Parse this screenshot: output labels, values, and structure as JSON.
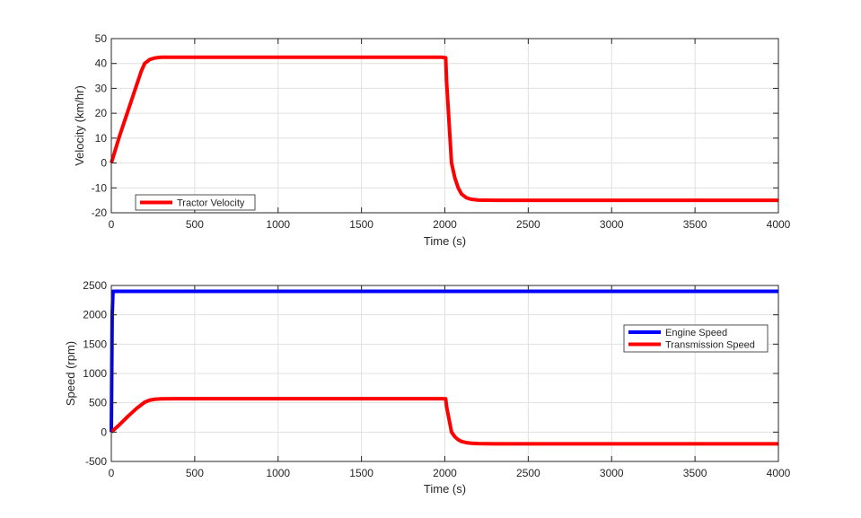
{
  "chart_data": [
    {
      "type": "line",
      "xlabel": "Time (s)",
      "ylabel": "Velocity (km/hr)",
      "xlim": [
        0,
        4000
      ],
      "ylim": [
        -20,
        50
      ],
      "xticks": [
        0,
        500,
        1000,
        1500,
        2000,
        2500,
        3000,
        3500,
        4000
      ],
      "yticks": [
        -20,
        -10,
        0,
        10,
        20,
        30,
        40,
        50
      ],
      "grid": true,
      "legend_position": "bottom-left",
      "series": [
        {
          "name": "Tractor Velocity",
          "color": "#ff0000",
          "x": [
            0,
            50,
            100,
            150,
            180,
            200,
            230,
            260,
            300,
            400,
            800,
            1200,
            1600,
            1980,
            2005,
            2010,
            2040,
            2060,
            2080,
            2100,
            2130,
            2160,
            2200,
            2300,
            2500,
            3000,
            3500,
            4000
          ],
          "y": [
            0,
            11,
            21,
            31,
            37,
            40,
            41.6,
            42.2,
            42.5,
            42.5,
            42.5,
            42.5,
            42.5,
            42.5,
            42.3,
            33,
            0,
            -6,
            -10,
            -12.5,
            -14,
            -14.6,
            -14.9,
            -15,
            -15,
            -15,
            -15,
            -15
          ]
        }
      ]
    },
    {
      "type": "line",
      "xlabel": "Time (s)",
      "ylabel": "Speed (rpm)",
      "xlim": [
        0,
        4000
      ],
      "ylim": [
        -500,
        2500
      ],
      "xticks": [
        0,
        500,
        1000,
        1500,
        2000,
        2500,
        3000,
        3500,
        4000
      ],
      "yticks": [
        -500,
        0,
        500,
        1000,
        1500,
        2000,
        2500
      ],
      "grid": true,
      "legend_position": "right",
      "series": [
        {
          "name": "Engine Speed",
          "color": "#0000ff",
          "x": [
            0,
            5,
            10,
            15,
            500,
            1000,
            2000,
            2500,
            3000,
            3500,
            4000
          ],
          "y": [
            0,
            2000,
            2400,
            2400,
            2400,
            2400,
            2400,
            2400,
            2400,
            2400,
            2400
          ]
        },
        {
          "name": "Transmission Speed",
          "color": "#ff0000",
          "x": [
            0,
            50,
            100,
            150,
            200,
            230,
            260,
            300,
            400,
            800,
            1200,
            1600,
            1980,
            2005,
            2010,
            2040,
            2060,
            2080,
            2100,
            2130,
            2160,
            2200,
            2300,
            2500,
            3000,
            3500,
            4000
          ],
          "y": [
            0,
            130,
            270,
            400,
            510,
            545,
            560,
            567,
            570,
            570,
            570,
            570,
            570,
            567,
            440,
            0,
            -80,
            -130,
            -160,
            -180,
            -190,
            -195,
            -200,
            -200,
            -200,
            -200,
            -200
          ]
        }
      ]
    }
  ]
}
